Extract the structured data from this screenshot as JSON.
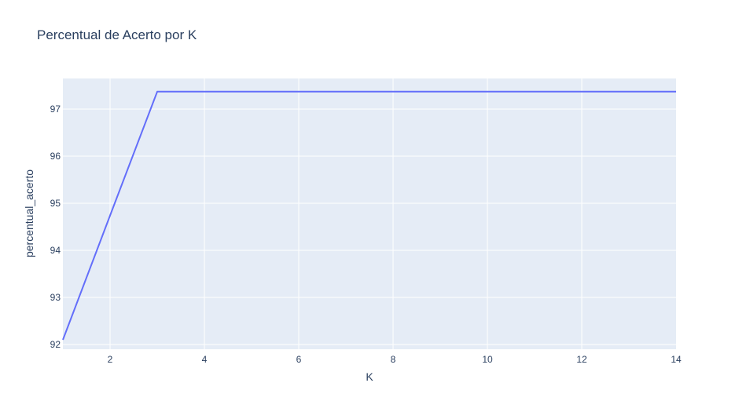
{
  "chart_data": {
    "type": "line",
    "title": "Percentual de Acerto por K",
    "xlabel": "K",
    "ylabel": "percentual_acerto",
    "x": [
      1,
      2,
      3,
      4,
      5,
      6,
      7,
      8,
      9,
      10,
      11,
      12,
      13,
      14
    ],
    "series": [
      {
        "values": [
          92.1,
          94.74,
          97.37,
          97.37,
          97.37,
          97.37,
          97.37,
          97.37,
          97.37,
          97.37,
          97.37,
          97.37,
          97.37,
          97.37
        ]
      }
    ],
    "xlim": [
      1,
      14
    ],
    "ylim": [
      91.9,
      97.65
    ],
    "xticks": [
      "2",
      "4",
      "6",
      "8",
      "10",
      "12",
      "14"
    ],
    "yticks": [
      "92",
      "93",
      "94",
      "95",
      "96",
      "97"
    ],
    "grid": true,
    "legend": "none",
    "colors": {
      "background": "#e5ecf6",
      "grid": "#ffffff",
      "line": "#636efa",
      "text": "#2a3f5f"
    }
  }
}
